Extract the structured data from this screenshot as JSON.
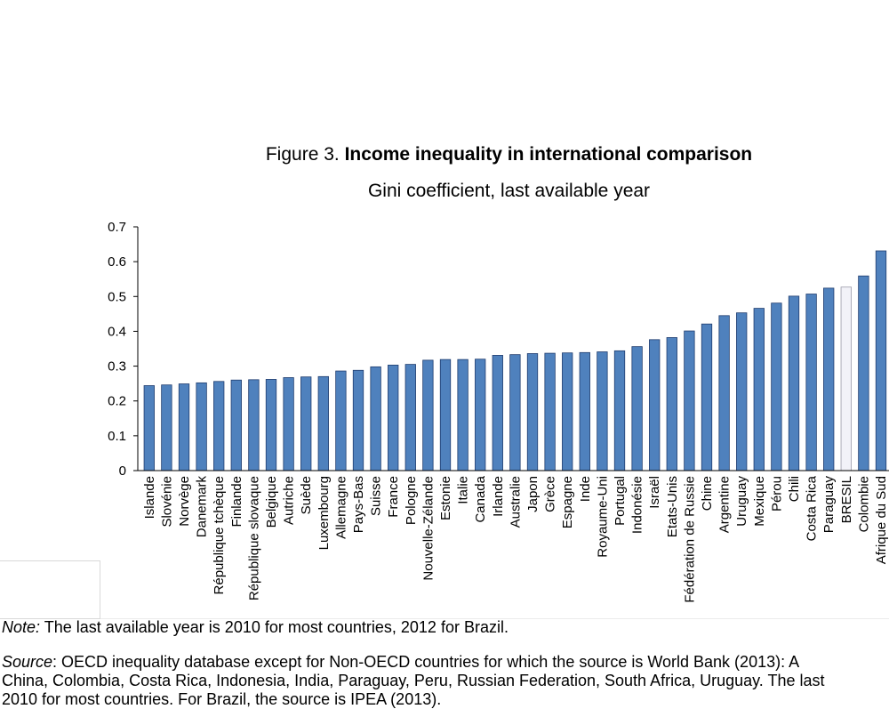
{
  "figure": {
    "number": "Figure 3.",
    "title": "Income inequality in international comparison",
    "subtitle": "Gini coefficient, last available year"
  },
  "colors": {
    "bar": "#4f81bd",
    "bar_border": "#1f3c6e",
    "highlight": "#f2f2f8",
    "highlight_border": "#9a9aa8"
  },
  "chart_data": {
    "type": "bar",
    "title": "Income inequality in international comparison",
    "subtitle": "Gini coefficient, last available year",
    "xlabel": "",
    "ylabel": "",
    "ylim": [
      0,
      0.7
    ],
    "yticks": [
      0,
      0.1,
      0.2,
      0.3,
      0.4,
      0.5,
      0.6,
      0.7
    ],
    "ytick_labels": [
      "0",
      "0.1",
      "0.2",
      "0.3",
      "0.4",
      "0.5",
      "0.6",
      "0.7"
    ],
    "grid": false,
    "highlight_category": "BRESIL",
    "categories": [
      "Islande",
      "Slovénie",
      "Norvège",
      "Danemark",
      "République tchèque",
      "Finlande",
      "République slovaque",
      "Belgique",
      "Autriche",
      "Suède",
      "Luxembourg",
      "Allemagne",
      "Pays-Bas",
      "Suisse",
      "France",
      "Pologne",
      "Nouvelle-Zélande",
      "Estonie",
      "Italie",
      "Canada",
      "Irlande",
      "Australie",
      "Japon",
      "Grèce",
      "Espagne",
      "Inde",
      "Royaume-Uni",
      "Portugal",
      "Indonésie",
      "Israël",
      "Etats-Unis",
      "Fédération de Russie",
      "Chine",
      "Argentine",
      "Uruguay",
      "Mexique",
      "Pérou",
      "Chili",
      "Costa Rica",
      "Paraguay",
      "BRESIL",
      "Colombie",
      "Afrique du Sud"
    ],
    "values": [
      0.244,
      0.246,
      0.249,
      0.252,
      0.256,
      0.26,
      0.261,
      0.262,
      0.267,
      0.269,
      0.27,
      0.286,
      0.288,
      0.298,
      0.303,
      0.305,
      0.317,
      0.319,
      0.319,
      0.32,
      0.331,
      0.333,
      0.336,
      0.337,
      0.338,
      0.339,
      0.341,
      0.344,
      0.356,
      0.376,
      0.382,
      0.401,
      0.421,
      0.445,
      0.453,
      0.466,
      0.481,
      0.501,
      0.507,
      0.524,
      0.527,
      0.559,
      0.631
    ]
  },
  "notes": {
    "note_label": "Note:",
    "note_text": " The last available year is 2010 for most countries, 2012 for Brazil.",
    "source_label": "Source",
    "source_line1": ": OECD inequality database except for Non-OECD countries for which the source is World Bank (2013): A",
    "source_line2": "China, Colombia, Costa Rica, Indonesia, India, Paraguay, Peru, Russian Federation, South Africa, Uruguay. The last",
    "source_line3": "2010 for most countries. For Brazil, the source is IPEA (2013)."
  }
}
